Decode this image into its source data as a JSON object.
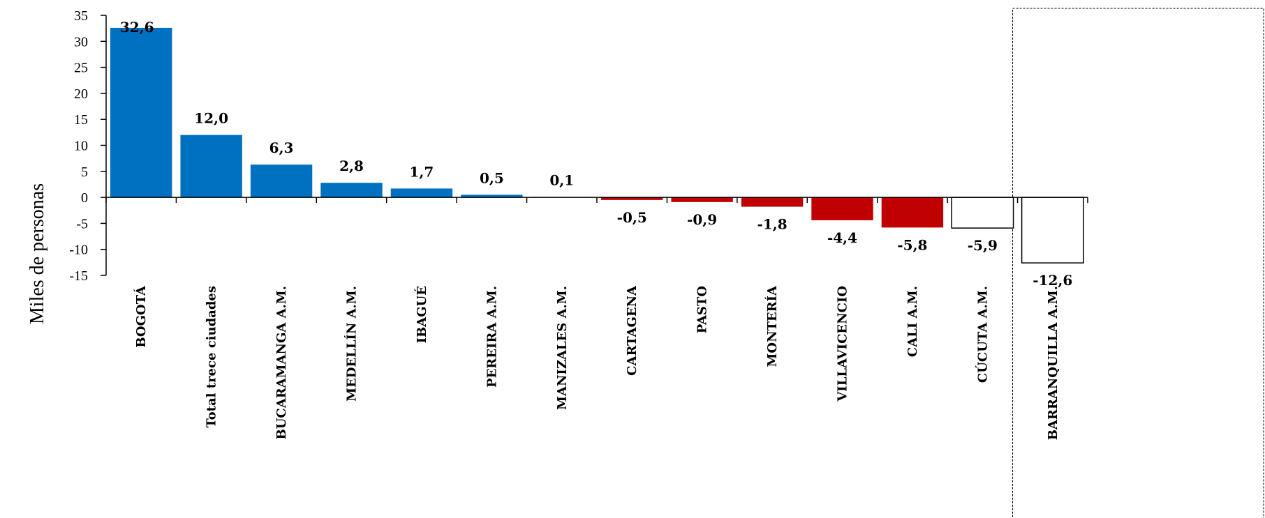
{
  "chart_data": {
    "type": "bar",
    "title": "",
    "xlabel": "",
    "ylabel": "Miles de personas",
    "ylim": [
      -15,
      35
    ],
    "yticks": [
      35,
      30,
      25,
      20,
      15,
      10,
      5,
      0,
      -5,
      -10,
      -15
    ],
    "grid": false,
    "categories": [
      "BOGOTÁ",
      "Total trece ciudades",
      "BUCARAMANGA A.M.",
      "MEDELLÍN A.M.",
      "IBAGUÉ",
      "PEREIRA A.M.",
      "MANIZALES A.M.",
      "CARTAGENA",
      "PASTO",
      "MONTERÍA",
      "VILLAVICENCIO",
      "CALI  A.M.",
      "CÚCUTA A.M.",
      "BARRANQUILLA A.M."
    ],
    "values": [
      32.6,
      12.0,
      6.3,
      2.8,
      1.7,
      0.5,
      0.1,
      -0.5,
      -0.9,
      -1.8,
      -4.4,
      -5.8,
      -5.9,
      -12.6
    ],
    "value_labels": [
      "32,6",
      "12,0",
      "6,3",
      "2,8",
      "1,7",
      "0,5",
      "0,1",
      "-0,5",
      "-0,9",
      "-1,8",
      "-4,4",
      "-5,8",
      "-5,9",
      "-12,6"
    ],
    "bar_colors": [
      "#0070C0",
      "#0070C0",
      "#0070C0",
      "#0070C0",
      "#0070C0",
      "#0070C0",
      "#0070C0",
      "#C00000",
      "#C00000",
      "#C00000",
      "#C00000",
      "#C00000",
      "#FFFFFF",
      "#FFFFFF"
    ],
    "highlight_box": "BARRANQUILLA A.M."
  },
  "colors": {
    "positive": "#0070C0",
    "negative": "#C00000",
    "outlined": "#FFFFFF",
    "axis": "#000000"
  }
}
